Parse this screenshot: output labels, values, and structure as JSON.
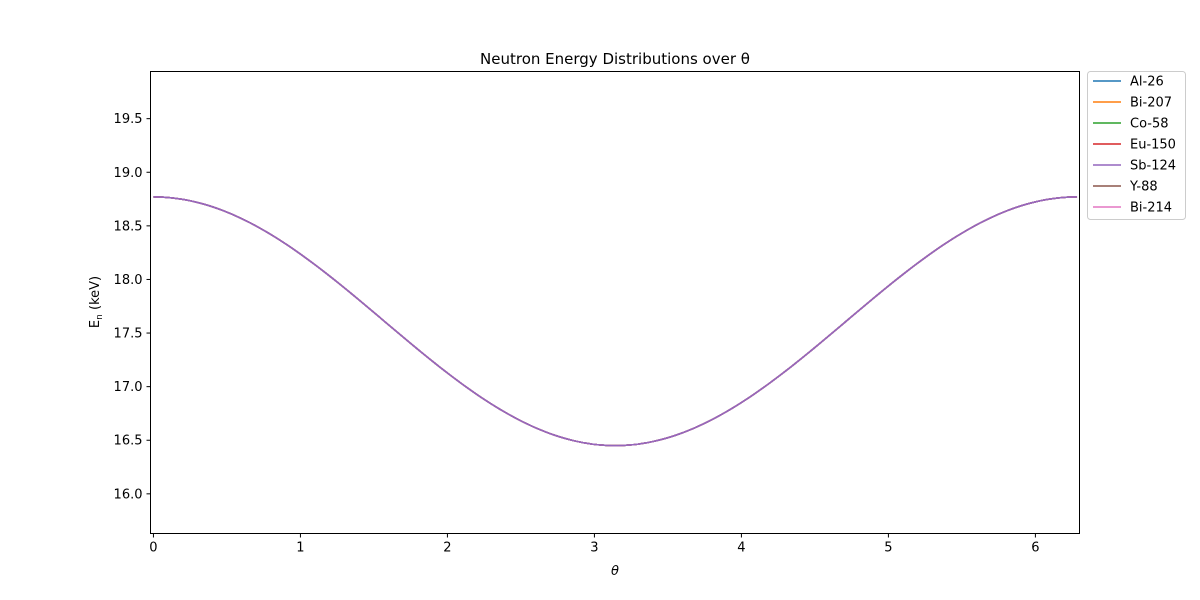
{
  "chart_data": {
    "type": "line",
    "title": "Neutron Energy Distributions over θ",
    "xlabel": "θ",
    "ylabel": "E_n (keV)",
    "ylabel_main": "E",
    "ylabel_sub": "n",
    "ylabel_rest": " (keV)",
    "xlim": [
      -0.02,
      6.3
    ],
    "ylim": [
      15.63,
      19.94
    ],
    "x_ticks": [
      0,
      1,
      2,
      3,
      4,
      5,
      6
    ],
    "x_tick_labels": [
      "0",
      "1",
      "2",
      "3",
      "4",
      "5",
      "6"
    ],
    "y_ticks": [
      16.0,
      16.5,
      17.0,
      17.5,
      18.0,
      18.5,
      19.0,
      19.5
    ],
    "y_tick_labels": [
      "16.0",
      "16.5",
      "17.0",
      "17.5",
      "18.0",
      "18.5",
      "19.0",
      "19.5"
    ],
    "grid": false,
    "legend_placement": "outside-top-right",
    "curve": {
      "x_start": 0,
      "x_end": 6.2832,
      "y_max": 18.77,
      "y_min": 16.45,
      "form": "cosine"
    },
    "series": [
      {
        "name": "Al-26",
        "color": "#1f77b4"
      },
      {
        "name": "Bi-207",
        "color": "#ff7f0e"
      },
      {
        "name": "Co-58",
        "color": "#2ca02c"
      },
      {
        "name": "Eu-150",
        "color": "#d62728"
      },
      {
        "name": "Sb-124",
        "color": "#9467bd"
      },
      {
        "name": "Y-88",
        "color": "#8c564b"
      },
      {
        "name": "Bi-214",
        "color": "#e377c2"
      }
    ]
  }
}
